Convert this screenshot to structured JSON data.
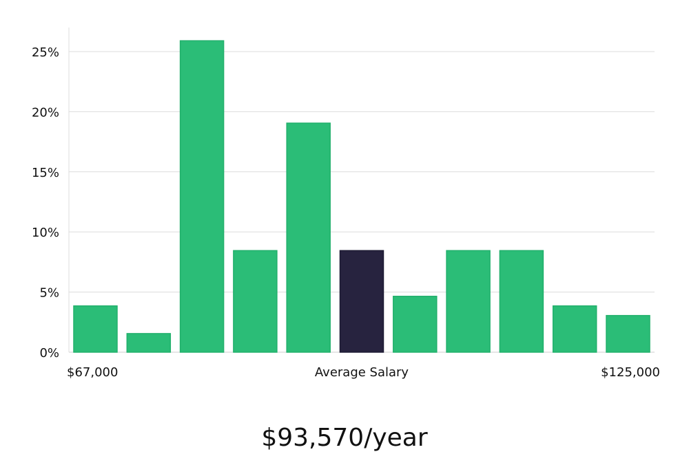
{
  "chart_data": {
    "type": "bar",
    "categories": [
      "1",
      "2",
      "3",
      "4",
      "5",
      "6",
      "7",
      "8",
      "9",
      "10",
      "11"
    ],
    "values": [
      3.85,
      1.55,
      25.9,
      8.45,
      19.05,
      8.45,
      4.65,
      8.45,
      8.45,
      3.85,
      3.05
    ],
    "highlight_index": 5,
    "ylim": [
      0,
      27
    ],
    "yticks": [
      0,
      5,
      10,
      15,
      20,
      25
    ],
    "ytick_labels": [
      "0%",
      "5%",
      "10%",
      "15%",
      "20%",
      "25%"
    ],
    "x_min_label": "$67,000",
    "x_center_label": "Average Salary",
    "x_max_label": "$125,000",
    "grid": true,
    "colors": {
      "bar": "#2bbd77",
      "highlight": "#27233f",
      "grid": "#dcdcdc",
      "axis": "#cccccc"
    }
  },
  "summary": {
    "average_salary_text": "$93,570/year"
  }
}
